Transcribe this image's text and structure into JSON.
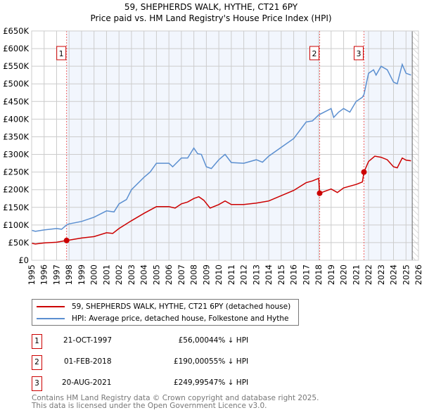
{
  "chart_data": {
    "type": "line",
    "title": "59, SHEPHERDS WALK, HYTHE, CT21 6PY",
    "subtitle": "Price paid vs. HM Land Registry's House Price Index (HPI)",
    "xlim": [
      1995,
      2026
    ],
    "ylim": [
      0,
      650000
    ],
    "y_ticks": [
      "£0",
      "£50K",
      "£100K",
      "£150K",
      "£200K",
      "£250K",
      "£300K",
      "£350K",
      "£400K",
      "£450K",
      "£500K",
      "£550K",
      "£600K",
      "£650K"
    ],
    "x_ticks": [
      "1995",
      "1996",
      "1997",
      "1998",
      "1999",
      "2000",
      "2001",
      "2002",
      "2003",
      "2004",
      "2005",
      "2006",
      "2007",
      "2008",
      "2009",
      "2010",
      "2011",
      "2012",
      "2013",
      "2014",
      "2015",
      "2016",
      "2017",
      "2018",
      "2019",
      "2020",
      "2021",
      "2022",
      "2023",
      "2024",
      "2025",
      "2026"
    ],
    "grid": true,
    "series": [
      {
        "name": "59, SHEPHERDS WALK, HYTHE, CT21 6PY (detached house)",
        "color": "#cc0000",
        "x": [
          1995,
          1995.3,
          1996,
          1997,
          1997.8,
          1998,
          1999,
          2000,
          2001,
          2001.5,
          2002,
          2003,
          2004,
          2005,
          2006,
          2006.5,
          2007,
          2007.5,
          2008,
          2008.4,
          2008.8,
          2009.3,
          2010,
          2010.5,
          2011,
          2012,
          2013,
          2014,
          2015,
          2016,
          2017,
          2017.5,
          2018.0,
          2018.08,
          2019,
          2019.5,
          2020,
          2021,
          2021.5,
          2021.63,
          2022,
          2022.5,
          2023,
          2023.5,
          2024,
          2024.3,
          2024.7,
          2025,
          2025.4
        ],
        "y": [
          48000,
          46000,
          49000,
          51000,
          56000,
          57000,
          63000,
          67000,
          78000,
          76000,
          90000,
          112000,
          133000,
          152000,
          152000,
          148000,
          160000,
          165000,
          175000,
          180000,
          170000,
          148000,
          158000,
          168000,
          158000,
          158000,
          162000,
          168000,
          183000,
          198000,
          220000,
          225000,
          232000,
          190000,
          202000,
          192000,
          205000,
          215000,
          222000,
          249995,
          280000,
          295000,
          292000,
          285000,
          265000,
          262000,
          290000,
          284000,
          282000
        ]
      },
      {
        "name": "HPI: Average price, detached house, Folkestone and Hythe",
        "color": "#5b8fd0",
        "x": [
          1995,
          1995.3,
          1996,
          1997,
          1997.4,
          1997.8,
          1998,
          1999,
          2000,
          2001,
          2001.6,
          2002,
          2002.6,
          2003,
          2004,
          2004.5,
          2005,
          2006,
          2006.3,
          2007,
          2007.5,
          2008,
          2008.3,
          2008.6,
          2009,
          2009.4,
          2010,
          2010.5,
          2011,
          2012,
          2013,
          2013.5,
          2014,
          2015,
          2016,
          2017,
          2017.5,
          2018,
          2019,
          2019.2,
          2019.6,
          2020,
          2020.5,
          2021,
          2021.5,
          2021.63,
          2022,
          2022.4,
          2022.6,
          2023,
          2023.5,
          2024,
          2024.3,
          2024.7,
          2025,
          2025.4
        ],
        "y": [
          85000,
          82000,
          86000,
          90000,
          88000,
          100000,
          103000,
          110000,
          122000,
          140000,
          137000,
          160000,
          172000,
          200000,
          235000,
          250000,
          275000,
          275000,
          265000,
          290000,
          290000,
          318000,
          302000,
          300000,
          265000,
          260000,
          285000,
          300000,
          277000,
          275000,
          285000,
          278000,
          295000,
          320000,
          345000,
          392000,
          395000,
          412000,
          430000,
          405000,
          420000,
          430000,
          420000,
          450000,
          462000,
          470000,
          530000,
          540000,
          525000,
          550000,
          540000,
          505000,
          500000,
          555000,
          530000,
          525000
        ]
      }
    ],
    "sales": [
      {
        "label": "1",
        "x": 1997.8,
        "price": 56000
      },
      {
        "label": "2",
        "x": 2018.08,
        "price": 190000
      },
      {
        "label": "3",
        "x": 2021.63,
        "price": 249995
      }
    ],
    "shaded_ranges": [
      [
        1997.8,
        2018.08
      ],
      [
        2021.63,
        2025.5
      ]
    ],
    "hatched_from": 2025.5
  },
  "legend": {
    "entries": [
      "59, SHEPHERDS WALK, HYTHE, CT21 6PY (detached house)",
      "HPI: Average price, detached house, Folkestone and Hythe"
    ]
  },
  "table": [
    {
      "num": "1",
      "date": "21-OCT-1997",
      "price": "£56,000",
      "hpi": "44% ↓ HPI"
    },
    {
      "num": "2",
      "date": "01-FEB-2018",
      "price": "£190,000",
      "hpi": "55% ↓ HPI"
    },
    {
      "num": "3",
      "date": "20-AUG-2021",
      "price": "£249,995",
      "hpi": "47% ↓ HPI"
    }
  ],
  "footer": {
    "line1": "Contains HM Land Registry data © Crown copyright and database right 2025.",
    "line2": "This data is licensed under the Open Government Licence v3.0."
  }
}
